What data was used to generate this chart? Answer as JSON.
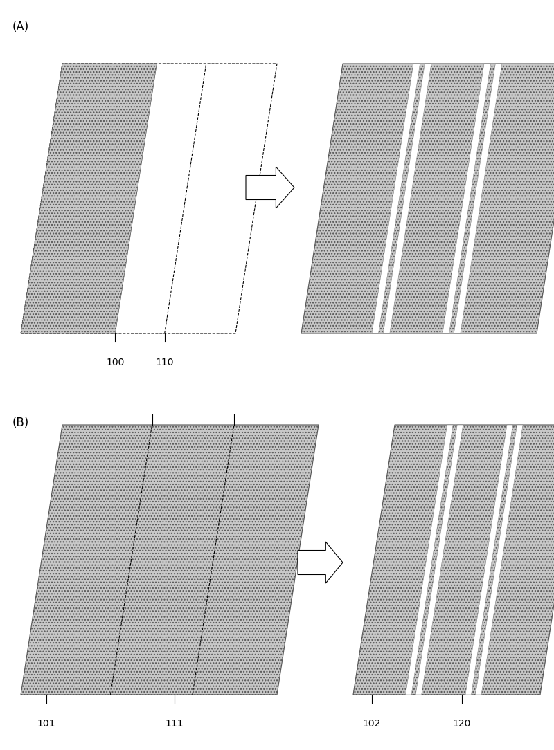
{
  "bg_color": "#ffffff",
  "fill_color": "#c8c8c8",
  "hatch_color": "#555555",
  "edge_color": "#000000",
  "panel_A_label": "(A)",
  "panel_B_label": "(B)",
  "label_A_left1": "100",
  "label_A_left2": "110",
  "label_B_left1": "101",
  "label_B_left2": "111",
  "label_B_right1": "102",
  "label_B_right2": "120",
  "label_fontsize": 10,
  "panel_label_fontsize": 12,
  "hatch_density": "....",
  "stripe_gap_color": "#ffffff"
}
